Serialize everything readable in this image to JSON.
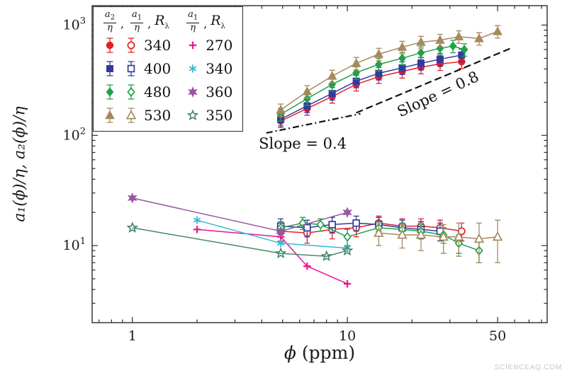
{
  "figure": {
    "watermark": "SCIENCEAQ.COM"
  },
  "labels": {
    "phi": "ϕ",
    "ppm": " (ppm)",
    "ylabel": "a₁(ϕ)/η,  a₂(ϕ)/η"
  },
  "legend": {
    "separator": ",",
    "groups": [
      {
        "header": {
          "fracs": [
            {
              "num": "a",
              "num_sub": "2",
              "den": "η"
            },
            {
              "num": "a",
              "num_sub": "1",
              "den": "η"
            }
          ],
          "tail_base": "R",
          "tail_sub": "λ"
        },
        "rows": [
          {
            "label": "340",
            "color": "#e32128",
            "marker": "circle",
            "pair": true
          },
          {
            "label": "400",
            "color": "#333a9e",
            "marker": "square",
            "pair": true
          },
          {
            "label": "480",
            "color": "#21a049",
            "marker": "diamond",
            "pair": true
          },
          {
            "label": "530",
            "color": "#a58a5f",
            "marker": "triangle",
            "pair": true
          }
        ]
      },
      {
        "header": {
          "fracs": [
            {
              "num": "a",
              "num_sub": "1",
              "den": "η"
            }
          ],
          "tail_base": "R",
          "tail_sub": "λ"
        },
        "rows": [
          {
            "label": "270",
            "color": "#ec1390",
            "marker": "plus"
          },
          {
            "label": "340",
            "color": "#39b6dc",
            "marker": "asterisk"
          },
          {
            "label": "360",
            "color": "#96589f",
            "marker": "star6"
          },
          {
            "label": "350",
            "color": "#47876f",
            "marker": "star5open"
          }
        ]
      }
    ]
  },
  "chart_data": {
    "type": "scatter",
    "scale": "log-log",
    "title": "",
    "xlabel": "ϕ (ppm)",
    "ylabel": "a₁(ϕ)/η, a₂(ϕ)/η",
    "xlim": [
      0.65,
      85
    ],
    "ylim": [
      2,
      1500
    ],
    "xticks": [
      1,
      10,
      50
    ],
    "xtick_labels": [
      "1",
      "10",
      "50"
    ],
    "yticks": [
      10,
      100,
      1000
    ],
    "ytick_base": "10",
    "ytick_exponents": [
      "1",
      "2",
      "3"
    ],
    "grid": false,
    "legend_position": "top-left",
    "slope_lines": [
      {
        "label": "Slope = 0.4",
        "dash": "dashdot",
        "x": [
          4.2,
          11.5
        ],
        "y": [
          105,
          157
        ],
        "label_x": 6.2,
        "label_y": 76,
        "label_rotate": 0
      },
      {
        "label": "Slope = 0.8",
        "dash": "dashed",
        "x": [
          11,
          58
        ],
        "y": [
          160,
          620
        ],
        "label_x": 27,
        "label_y": 215,
        "label_rotate": -25
      }
    ],
    "series": [
      {
        "name": "a2-eta-R340",
        "legend": "340",
        "color": "#e32128",
        "marker": "circle",
        "filled": true,
        "x": [
          4.9,
          6.5,
          8.5,
          11,
          14,
          18,
          22,
          27,
          34
        ],
        "y": [
          135,
          175,
          225,
          290,
          340,
          380,
          415,
          445,
          465
        ],
        "yerr_frac": 0.13
      },
      {
        "name": "a2-eta-R400",
        "legend": "400",
        "color": "#333a9e",
        "marker": "square",
        "filled": true,
        "x": [
          4.9,
          6.5,
          8.5,
          11,
          14,
          18,
          22,
          27,
          34
        ],
        "y": [
          140,
          185,
          240,
          310,
          365,
          410,
          450,
          490,
          535
        ],
        "yerr_frac": 0.13
      },
      {
        "name": "a2-eta-R480",
        "legend": "480",
        "color": "#21a049",
        "marker": "diamond",
        "filled": true,
        "x": [
          4.9,
          6.5,
          8.5,
          11,
          14,
          18,
          22,
          27,
          31,
          35
        ],
        "y": [
          155,
          215,
          290,
          370,
          440,
          500,
          560,
          615,
          645,
          600
        ],
        "yerr_frac": 0.13
      },
      {
        "name": "a2-eta-R530",
        "legend": "530",
        "color": "#a58a5f",
        "marker": "triangle",
        "filled": true,
        "x": [
          4.9,
          6.5,
          8.5,
          11,
          14,
          18,
          22,
          27,
          33,
          41,
          50
        ],
        "y": [
          170,
          250,
          345,
          450,
          545,
          630,
          700,
          730,
          785,
          755,
          875
        ],
        "yerr_frac": 0.13
      },
      {
        "name": "a1-eta-R340",
        "legend": "340",
        "color": "#e32128",
        "marker": "circle",
        "filled": false,
        "x": [
          4.9,
          6.5,
          8.5,
          11,
          14,
          18,
          22,
          27,
          34
        ],
        "y": [
          13.5,
          13,
          14,
          14.5,
          16,
          15,
          15,
          14.5,
          13.5
        ],
        "yerr_const": 2.5
      },
      {
        "name": "a1-eta-R400",
        "legend": "400",
        "color": "#333a9e",
        "marker": "square",
        "filled": false,
        "x": [
          4.9,
          6.5,
          8.5,
          11,
          14,
          18,
          22,
          27
        ],
        "y": [
          15,
          14.5,
          15.5,
          16,
          15.5,
          14.5,
          14,
          13.5
        ],
        "yerr_const": 2.5
      },
      {
        "name": "a1-eta-R480",
        "legend": "480",
        "color": "#21a049",
        "marker": "diamond",
        "filled": false,
        "x": [
          4.9,
          6.2,
          7.5,
          10,
          14,
          18,
          22,
          28,
          33,
          41
        ],
        "y": [
          14.5,
          16,
          15.5,
          12,
          14.5,
          14,
          13.5,
          12.5,
          10.5,
          9
        ],
        "yerr_const": 2
      },
      {
        "name": "a1-eta-R530",
        "legend": "530",
        "color": "#a58a5f",
        "marker": "triangle",
        "filled": false,
        "x": [
          14,
          18,
          22,
          28,
          33,
          41,
          50
        ],
        "y": [
          13,
          12.5,
          12.5,
          12,
          12,
          11.5,
          12
        ],
        "yerr_arr": [
          3,
          3,
          3.5,
          3.5,
          4,
          4.5,
          5
        ]
      },
      {
        "name": "a1-eta-R270",
        "legend": "270",
        "color": "#ec1390",
        "marker": "plus",
        "x": [
          2,
          4.9,
          6.5,
          10
        ],
        "y": [
          14,
          12,
          6.5,
          4.5
        ]
      },
      {
        "name": "a1-eta-R340-star",
        "legend": "340",
        "color": "#39b6dc",
        "marker": "asterisk",
        "x": [
          2,
          4.9,
          10
        ],
        "y": [
          17,
          10.5,
          9.5
        ]
      },
      {
        "name": "a1-eta-R360",
        "legend": "360",
        "color": "#96589f",
        "marker": "star6",
        "x": [
          1,
          4.9,
          10
        ],
        "y": [
          27,
          13.5,
          20
        ]
      },
      {
        "name": "a1-eta-R350",
        "legend": "350",
        "color": "#47876f",
        "marker": "star5open",
        "x": [
          1,
          4.9,
          8,
          10
        ],
        "y": [
          14.5,
          8.5,
          8,
          9
        ]
      }
    ]
  }
}
